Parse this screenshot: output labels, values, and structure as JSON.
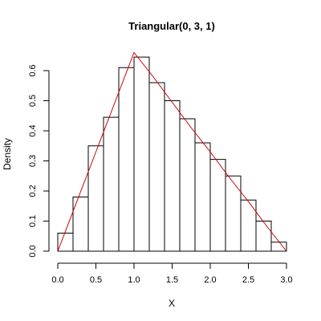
{
  "chart_data": {
    "type": "bar",
    "title": "Triangular(0, 3, 1)",
    "xlabel": "X",
    "ylabel": "Density",
    "xlim": [
      0,
      3
    ],
    "ylim": [
      0,
      0.65
    ],
    "xticks": [
      "0.0",
      "0.5",
      "1.0",
      "1.5",
      "2.0",
      "2.5",
      "3.0"
    ],
    "xtick_values": [
      0,
      0.5,
      1,
      1.5,
      2,
      2.5,
      3
    ],
    "yticks": [
      "0.0",
      "0.1",
      "0.2",
      "0.3",
      "0.4",
      "0.5",
      "0.6"
    ],
    "ytick_values": [
      0,
      0.1,
      0.2,
      0.3,
      0.4,
      0.5,
      0.6
    ],
    "bins": [
      {
        "x0": 0.0,
        "x1": 0.2,
        "density": 0.06
      },
      {
        "x0": 0.2,
        "x1": 0.4,
        "density": 0.18
      },
      {
        "x0": 0.4,
        "x1": 0.6,
        "density": 0.35
      },
      {
        "x0": 0.6,
        "x1": 0.8,
        "density": 0.445
      },
      {
        "x0": 0.8,
        "x1": 1.0,
        "density": 0.61
      },
      {
        "x0": 1.0,
        "x1": 1.2,
        "density": 0.645
      },
      {
        "x0": 1.2,
        "x1": 1.4,
        "density": 0.56
      },
      {
        "x0": 1.4,
        "x1": 1.6,
        "density": 0.5
      },
      {
        "x0": 1.6,
        "x1": 1.8,
        "density": 0.44
      },
      {
        "x0": 1.8,
        "x1": 2.0,
        "density": 0.36
      },
      {
        "x0": 2.0,
        "x1": 2.2,
        "density": 0.305
      },
      {
        "x0": 2.2,
        "x1": 2.4,
        "density": 0.25
      },
      {
        "x0": 2.4,
        "x1": 2.6,
        "density": 0.17
      },
      {
        "x0": 2.6,
        "x1": 2.8,
        "density": 0.1
      },
      {
        "x0": 2.8,
        "x1": 3.0,
        "density": 0.03
      }
    ],
    "density_curve": {
      "color": "#cc0000",
      "x": [
        0,
        0.25,
        0.5,
        0.75,
        1.0,
        1.25,
        1.5,
        1.75,
        2.0,
        2.25,
        2.5,
        2.75,
        3.0
      ],
      "y": [
        0,
        0.165,
        0.33,
        0.495,
        0.66,
        0.58,
        0.495,
        0.41,
        0.33,
        0.245,
        0.165,
        0.08,
        0
      ]
    },
    "grid": false,
    "legend": "none"
  }
}
